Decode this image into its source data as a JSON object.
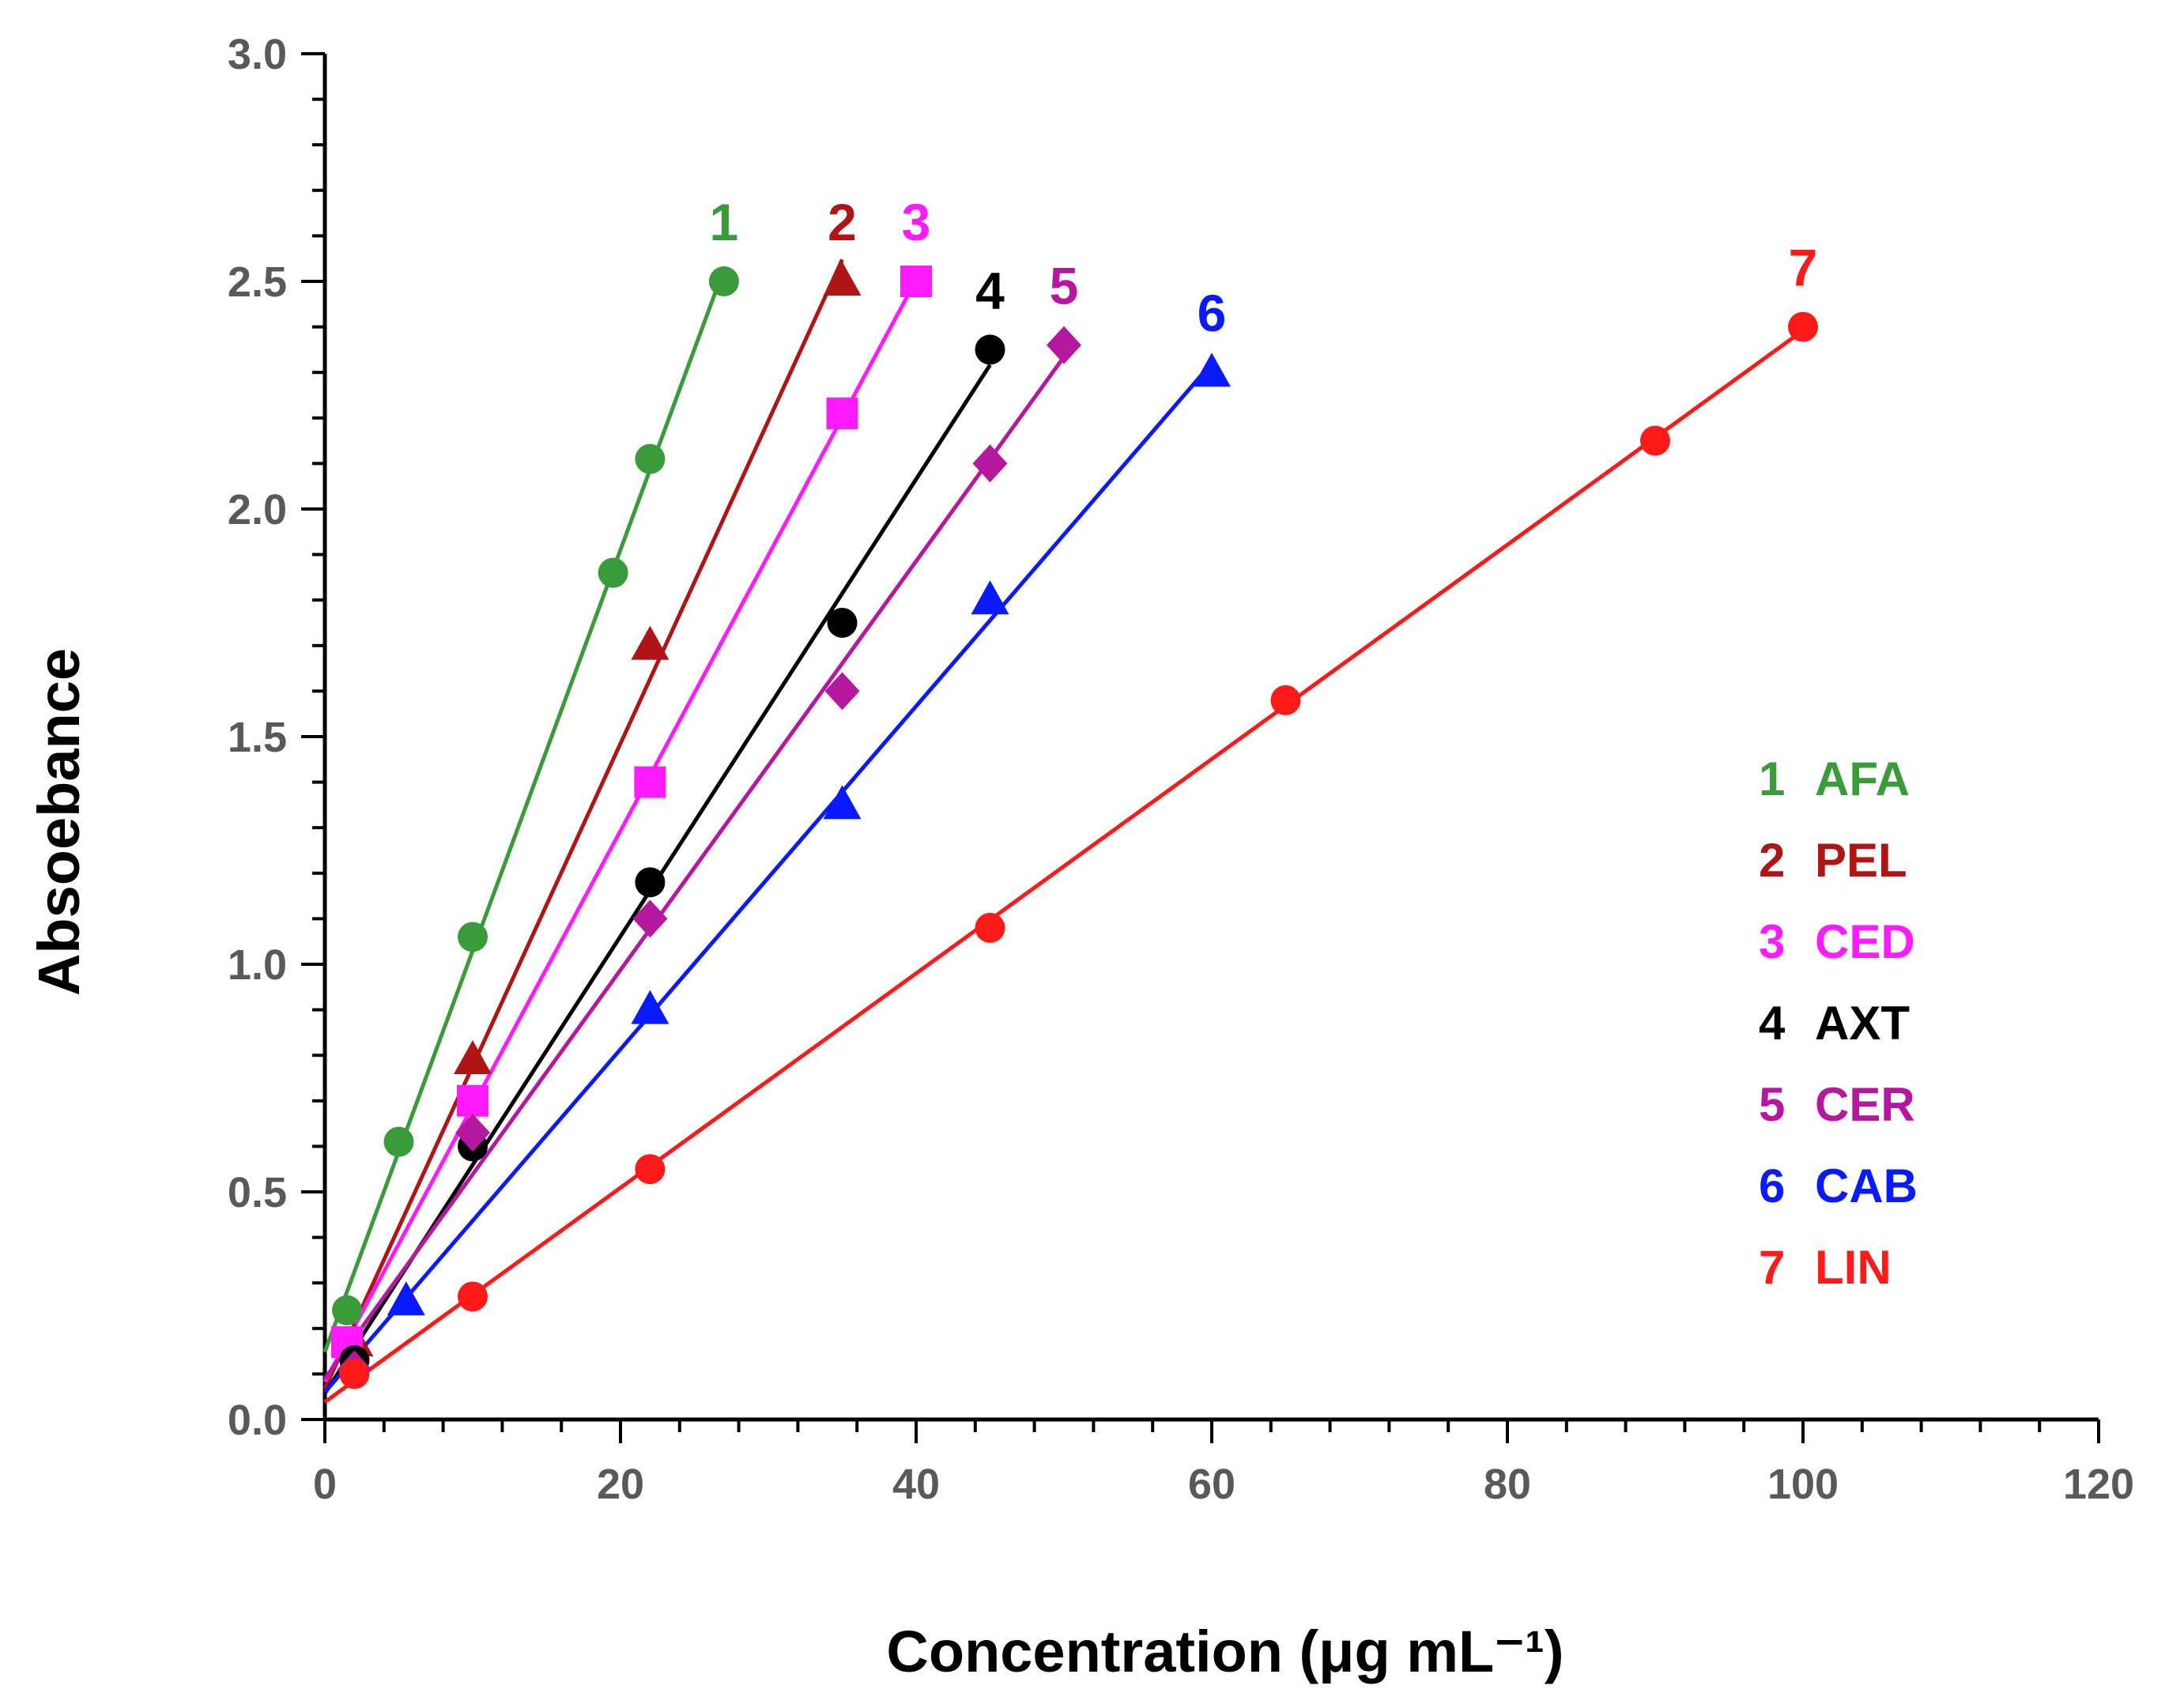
{
  "chart_data": {
    "type": "scatter",
    "xlabel": "Concentration (μg mL⁻¹)",
    "ylabel": "Absoebance",
    "xlim": [
      0,
      120
    ],
    "ylim": [
      0,
      3.0
    ],
    "x_ticks": [
      "0",
      "20",
      "40",
      "60",
      "80",
      "100",
      "120"
    ],
    "y_ticks": [
      "0.0",
      "0.5",
      "1.0",
      "1.5",
      "2.0",
      "2.5",
      "3.0"
    ],
    "grid": false,
    "legend_position": "right",
    "trendline": "linear",
    "series": [
      {
        "number": "1",
        "name": "AFA",
        "color": "#3a9b3a",
        "marker": "circle",
        "x": [
          1.5,
          5,
          10,
          19.5,
          22,
          27
        ],
        "y": [
          0.24,
          0.61,
          1.06,
          1.86,
          2.11,
          2.5
        ]
      },
      {
        "number": "2",
        "name": "PEL",
        "color": "#b01515",
        "marker": "triangle",
        "x": [
          2,
          10,
          22,
          35
        ],
        "y": [
          0.17,
          0.79,
          1.7,
          2.5
        ]
      },
      {
        "number": "3",
        "name": "CED",
        "color": "#ff1aff",
        "marker": "square",
        "x": [
          1.5,
          10,
          22,
          35,
          40
        ],
        "y": [
          0.17,
          0.7,
          1.4,
          2.21,
          2.5
        ]
      },
      {
        "number": "4",
        "name": "AXT",
        "color": "#000000",
        "marker": "circle",
        "x": [
          2,
          10,
          22,
          35,
          45
        ],
        "y": [
          0.13,
          0.6,
          1.18,
          1.75,
          2.35
        ]
      },
      {
        "number": "5",
        "name": "CER",
        "color": "#b5179e",
        "marker": "diamond",
        "x": [
          2,
          10,
          22,
          35,
          45,
          50
        ],
        "y": [
          0.11,
          0.63,
          1.1,
          1.6,
          2.1,
          2.36
        ]
      },
      {
        "number": "6",
        "name": "CAB",
        "color": "#0a1aff",
        "marker": "triangle",
        "x": [
          5.5,
          22,
          35,
          45,
          60
        ],
        "y": [
          0.26,
          0.9,
          1.35,
          1.8,
          2.3
        ]
      },
      {
        "number": "7",
        "name": "LIN",
        "color": "#ff1a1a",
        "marker": "circle",
        "x": [
          2,
          10,
          22,
          45,
          65,
          90,
          100
        ],
        "y": [
          0.1,
          0.27,
          0.55,
          1.08,
          1.58,
          2.15,
          2.4
        ]
      }
    ]
  }
}
